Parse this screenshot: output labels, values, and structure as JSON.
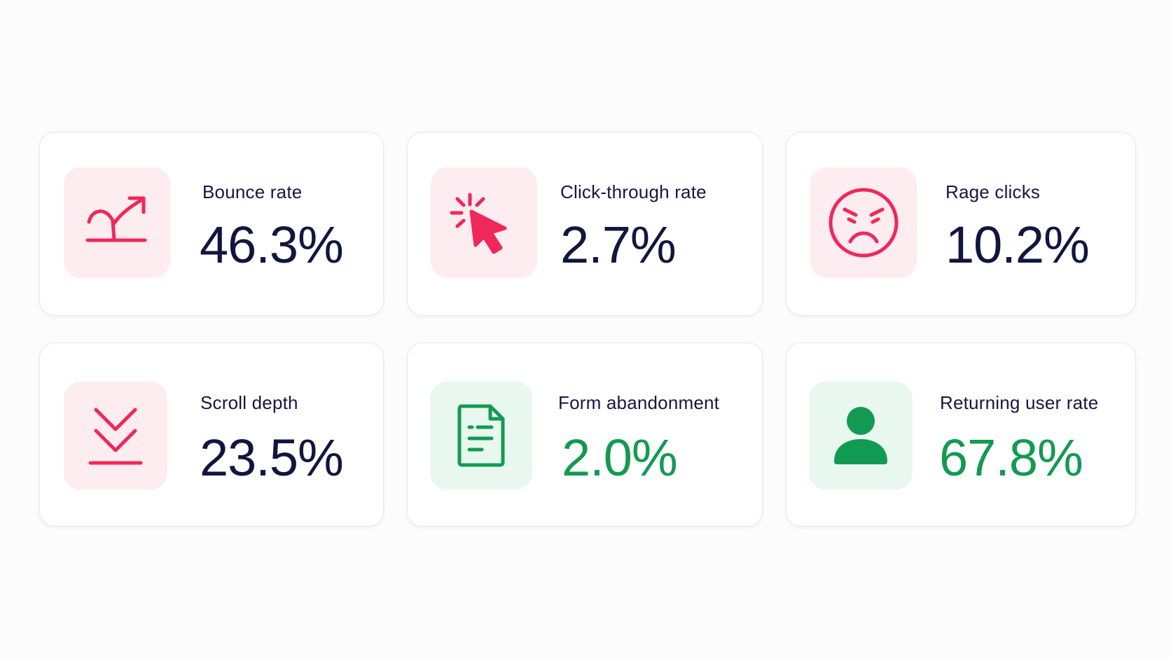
{
  "metrics": [
    {
      "label": "Bounce rate",
      "value": "46.3%",
      "icon": "bounce-arrow-icon",
      "tone": "negative"
    },
    {
      "label": "Click-through rate",
      "value": "2.7%",
      "icon": "cursor-click-icon",
      "tone": "negative"
    },
    {
      "label": "Rage clicks",
      "value": "10.2%",
      "icon": "angry-face-icon",
      "tone": "negative"
    },
    {
      "label": "Scroll depth",
      "value": "23.5%",
      "icon": "scroll-down-icon",
      "tone": "negative"
    },
    {
      "label": "Form abandonment",
      "value": "2.0%",
      "icon": "form-document-icon",
      "tone": "positive"
    },
    {
      "label": "Returning user rate",
      "value": "67.8%",
      "icon": "user-icon",
      "tone": "positive"
    }
  ],
  "colors": {
    "negative_accent": "#f0285a",
    "negative_bg": "#fdecf0",
    "positive_accent": "#139a52",
    "positive_bg": "#e9f8ef",
    "value_navy": "#11163f"
  }
}
